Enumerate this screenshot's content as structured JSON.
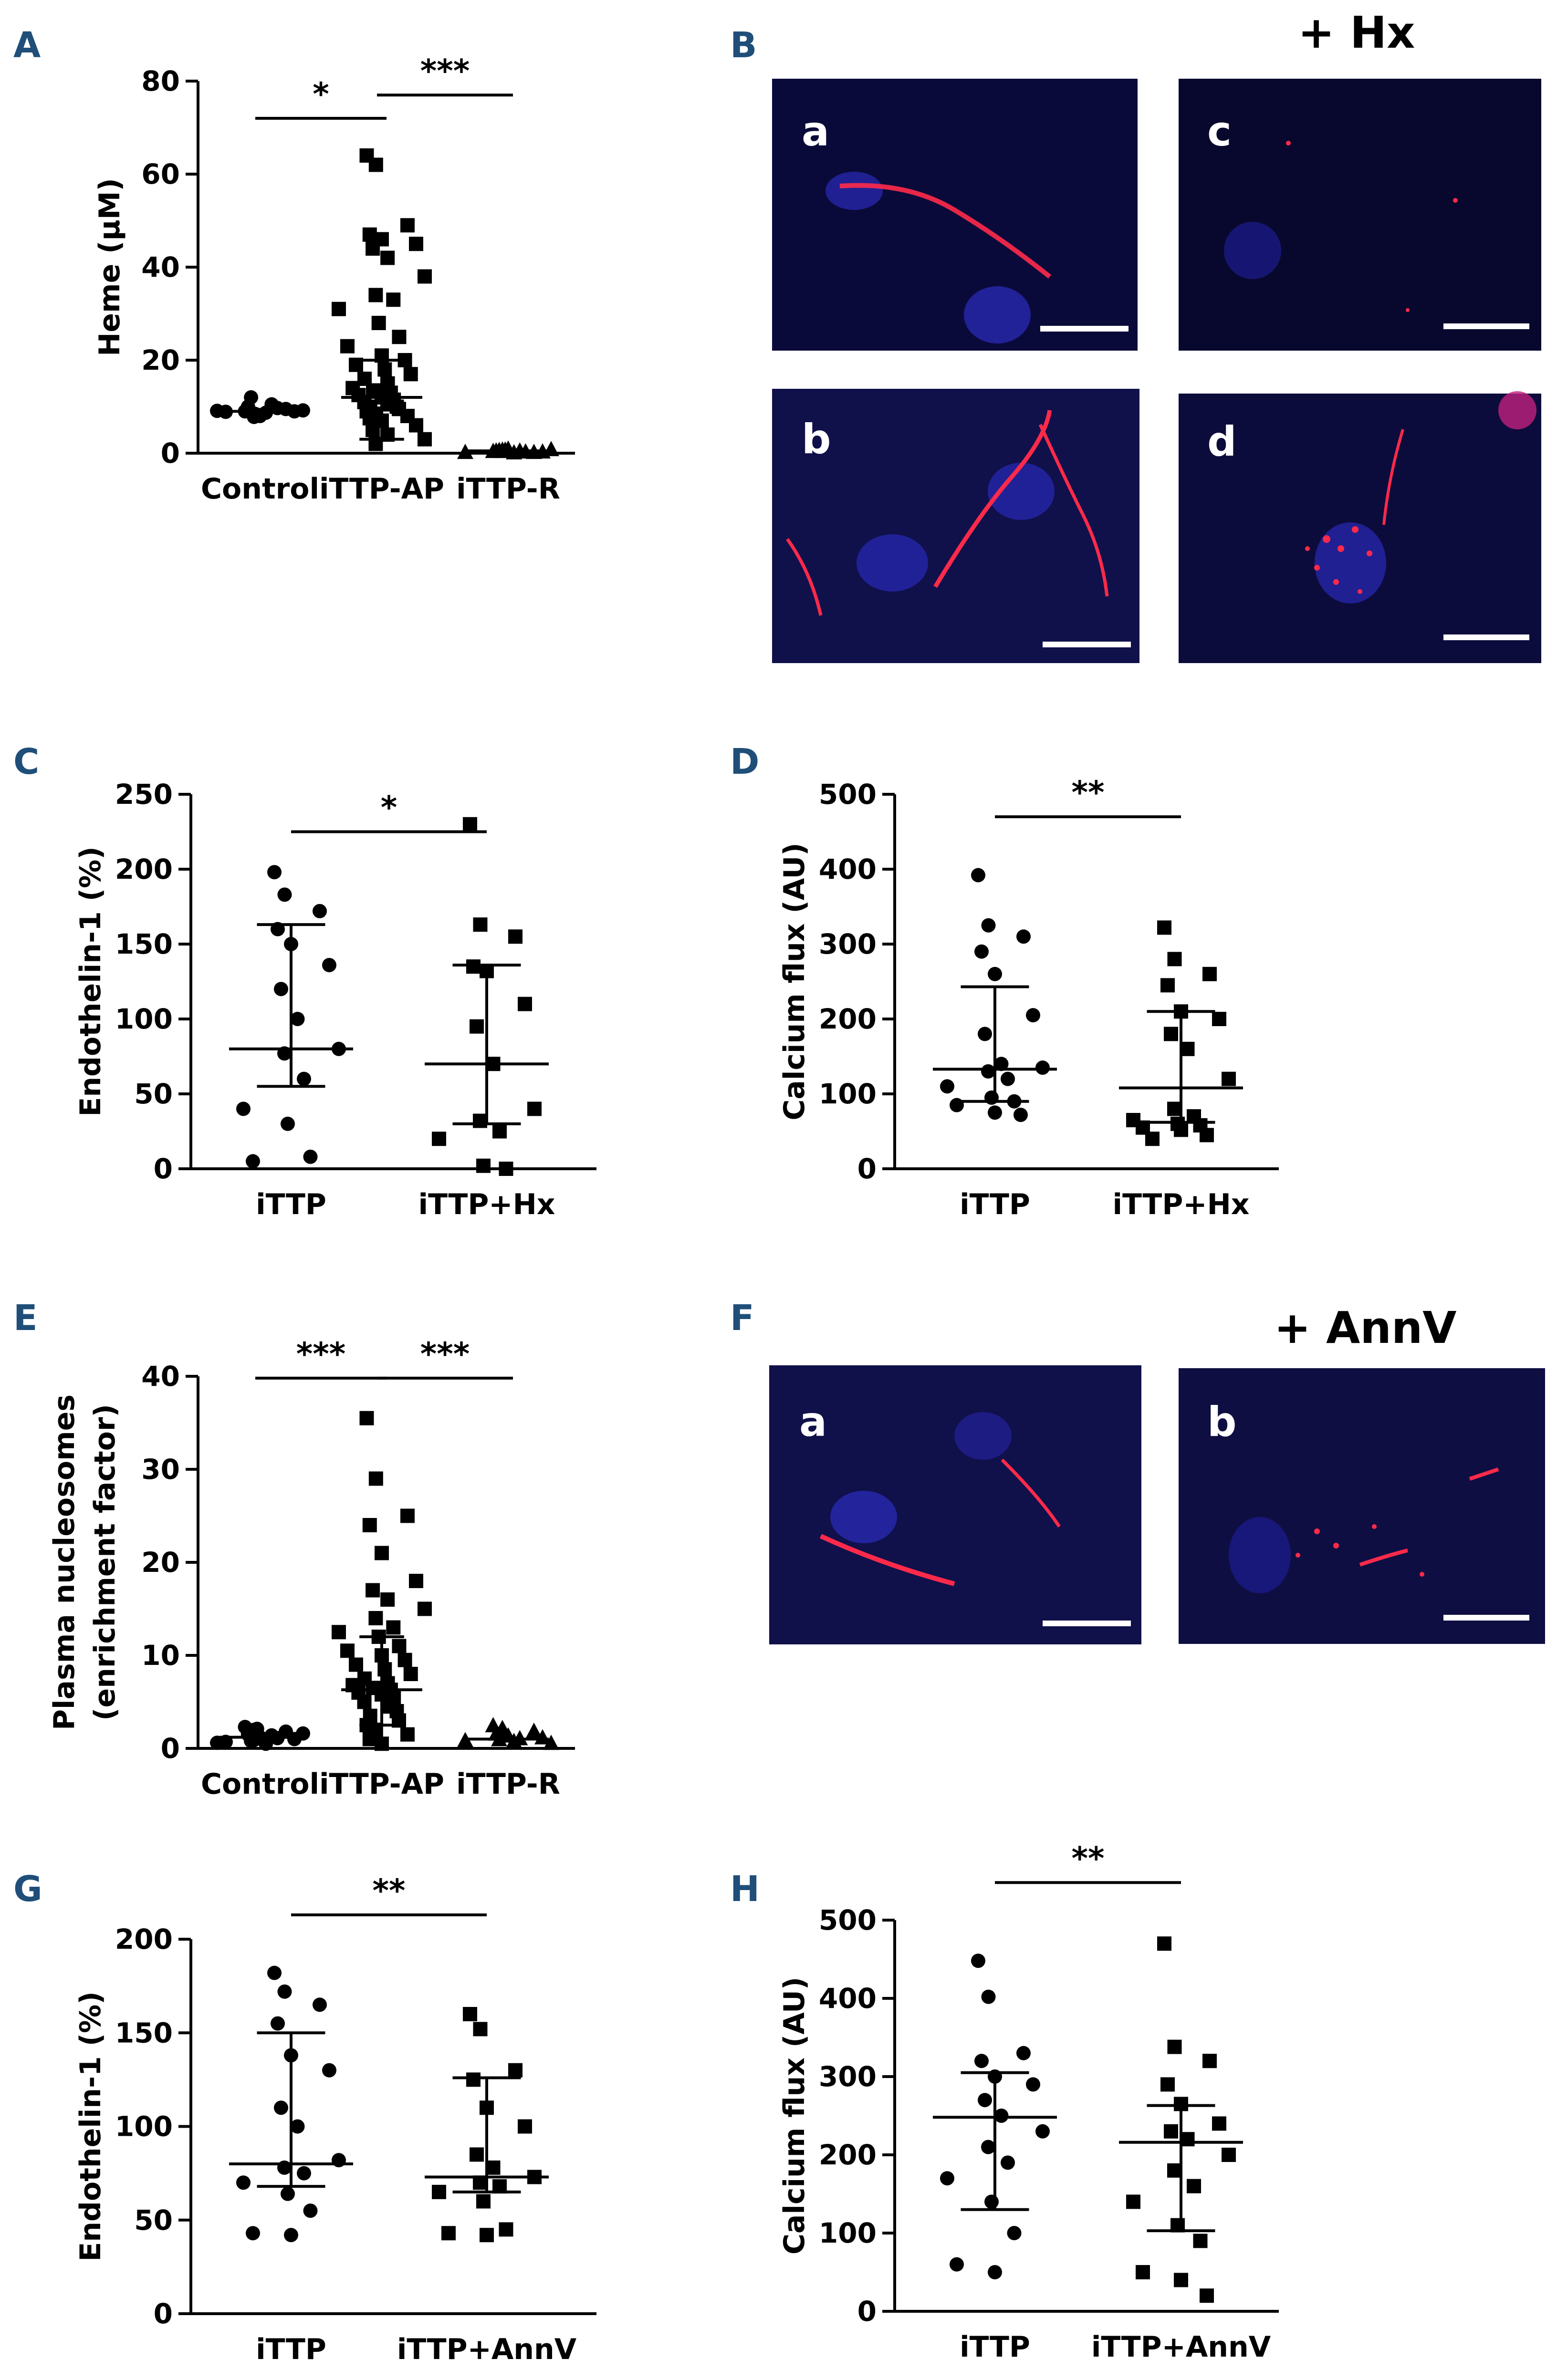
{
  "panels": {
    "A": {
      "letter": "A"
    },
    "B": {
      "letter": "B",
      "treatment": "+ Hx",
      "subs": [
        "a",
        "b",
        "c",
        "d"
      ]
    },
    "C": {
      "letter": "C"
    },
    "D": {
      "letter": "D"
    },
    "E": {
      "letter": "E"
    },
    "F": {
      "letter": "F",
      "treatment": "+ AnnV",
      "subs": [
        "a",
        "b"
      ]
    },
    "G": {
      "letter": "G"
    },
    "H": {
      "letter": "H"
    }
  },
  "chart_data": [
    {
      "id": "A",
      "type": "scatter",
      "ylabel": "Heme (µM)",
      "ylim": [
        0,
        80
      ],
      "yticks": [
        0,
        20,
        40,
        60,
        80
      ],
      "categories": [
        "Control",
        "iTTP-AP",
        "iTTP-R"
      ],
      "markers": [
        "circle",
        "square",
        "triangle"
      ],
      "series": [
        {
          "name": "Control",
          "values": [
            9,
            8.5,
            9.5,
            10,
            8,
            9,
            12,
            8.7,
            9.2,
            7.8,
            10.5,
            9.1,
            8.3,
            9.7,
            8.9
          ]
        },
        {
          "name": "iTTP-AP",
          "values": [
            64,
            62,
            49,
            47,
            46,
            45,
            44,
            42,
            38,
            34,
            33,
            31,
            28,
            25,
            23,
            21,
            20,
            19,
            18,
            17,
            16,
            15,
            14,
            13.5,
            13,
            12.5,
            12,
            11.5,
            11,
            10.5,
            10,
            10,
            9.5,
            9,
            8.5,
            8,
            7.5,
            7,
            6,
            5,
            4,
            3,
            2
          ]
        },
        {
          "name": "iTTP-R",
          "values": [
            0.5,
            0.8,
            0.3,
            0.6,
            1.0,
            0.4,
            0.7,
            0.2,
            0.9,
            0.5,
            0.6,
            0.3,
            0.8,
            0.4
          ]
        }
      ],
      "center": [
        9,
        12,
        0.5
      ],
      "error": [
        null,
        [
          3,
          20
        ],
        null
      ],
      "significance": [
        {
          "from": 0,
          "to": 1,
          "label": "*",
          "y": 72
        },
        {
          "from": 1,
          "to": 2,
          "label": "***",
          "y": 77
        }
      ]
    },
    {
      "id": "C",
      "type": "scatter",
      "ylabel": "Endothelin-1 (%)",
      "ylim": [
        0,
        250
      ],
      "yticks": [
        0,
        50,
        100,
        150,
        200,
        250
      ],
      "categories": [
        "iTTP",
        "iTTP+Hx"
      ],
      "markers": [
        "circle",
        "square"
      ],
      "series": [
        {
          "name": "iTTP",
          "values": [
            198,
            183,
            172,
            160,
            150,
            136,
            120,
            100,
            80,
            77,
            60,
            40,
            30,
            8,
            5
          ]
        },
        {
          "name": "iTTP+Hx",
          "values": [
            230,
            163,
            155,
            135,
            132,
            110,
            95,
            70,
            40,
            32,
            25,
            20,
            2,
            0
          ]
        }
      ],
      "center": [
        80,
        70
      ],
      "error": [
        [
          55,
          163
        ],
        [
          30,
          136
        ]
      ],
      "significance": [
        {
          "from": 0,
          "to": 1,
          "label": "*",
          "y": 225
        }
      ]
    },
    {
      "id": "D",
      "type": "scatter",
      "ylabel": "Calcium flux (AU)",
      "ylim": [
        0,
        500
      ],
      "yticks": [
        0,
        100,
        200,
        300,
        400,
        500
      ],
      "categories": [
        "iTTP",
        "iTTP+Hx"
      ],
      "markers": [
        "circle",
        "square"
      ],
      "series": [
        {
          "name": "iTTP",
          "values": [
            392,
            325,
            310,
            290,
            260,
            205,
            180,
            140,
            135,
            130,
            120,
            110,
            95,
            90,
            85,
            75,
            72
          ]
        },
        {
          "name": "iTTP+Hx",
          "values": [
            322,
            280,
            260,
            245,
            210,
            200,
            180,
            160,
            120,
            80,
            70,
            65,
            60,
            58,
            55,
            52,
            45,
            40
          ]
        }
      ],
      "center": [
        133,
        108
      ],
      "error": [
        [
          90,
          243
        ],
        [
          62,
          210
        ]
      ],
      "significance": [
        {
          "from": 0,
          "to": 1,
          "label": "**",
          "y": 470
        }
      ]
    },
    {
      "id": "E",
      "type": "scatter",
      "ylabel": "Plasma nucleosomes",
      "ylabel2": "(enrichment factor)",
      "ylim": [
        0,
        40
      ],
      "yticks": [
        0,
        10,
        20,
        30,
        40
      ],
      "categories": [
        "Control",
        "iTTP-AP",
        "iTTP-R"
      ],
      "markers": [
        "circle",
        "square",
        "triangle"
      ],
      "series": [
        {
          "name": "Control",
          "values": [
            2.3,
            2.0,
            1.8,
            1.5,
            1.2,
            1.0,
            0.8,
            0.5,
            1.6,
            0.9,
            1.4,
            0.6,
            2.1,
            1.1,
            0.7
          ]
        },
        {
          "name": "iTTP-AP",
          "values": [
            35.5,
            29,
            25,
            24,
            21,
            18,
            17,
            16,
            15,
            14,
            13,
            12.5,
            12,
            11,
            10.5,
            10,
            9.5,
            9,
            8.5,
            8,
            7.5,
            7,
            6.8,
            6.5,
            6.3,
            6,
            5.8,
            5.5,
            5,
            4.5,
            4,
            3.5,
            3,
            2.5,
            2,
            1.5,
            1,
            0.5
          ]
        },
        {
          "name": "iTTP-R",
          "values": [
            2.5,
            2.2,
            1.9,
            1.6,
            1.4,
            1.2,
            1.0,
            0.8,
            0.6,
            1.5,
            1.1,
            0.9
          ]
        }
      ],
      "center": [
        1.2,
        6.3,
        1.0
      ],
      "error": [
        null,
        [
          2.5,
          12
        ],
        null
      ],
      "significance": [
        {
          "from": 0,
          "to": 1,
          "label": "***",
          "y": 39.8
        },
        {
          "from": 1,
          "to": 2,
          "label": "***",
          "y": 39.8
        }
      ]
    },
    {
      "id": "G",
      "type": "scatter",
      "ylabel": "Endothelin-1 (%)",
      "ylim": [
        0,
        200
      ],
      "yticks": [
        0,
        50,
        100,
        150,
        200
      ],
      "categories": [
        "iTTP",
        "iTTP+AnnV"
      ],
      "markers": [
        "circle",
        "square"
      ],
      "series": [
        {
          "name": "iTTP",
          "values": [
            182,
            172,
            165,
            155,
            138,
            130,
            110,
            100,
            82,
            78,
            75,
            70,
            64,
            55,
            43,
            42
          ]
        },
        {
          "name": "iTTP+AnnV",
          "values": [
            160,
            152,
            130,
            125,
            110,
            100,
            85,
            78,
            73,
            70,
            68,
            65,
            60,
            45,
            43,
            42
          ]
        }
      ],
      "center": [
        80,
        73
      ],
      "error": [
        [
          68,
          150
        ],
        [
          65,
          126
        ]
      ],
      "significance": [
        {
          "from": 0,
          "to": 1,
          "label": "**",
          "y": 213
        }
      ]
    },
    {
      "id": "H",
      "type": "scatter",
      "ylabel": "Calcium flux (AU)",
      "ylim": [
        0,
        500
      ],
      "yticks": [
        0,
        100,
        200,
        300,
        400,
        500
      ],
      "categories": [
        "iTTP",
        "iTTP+AnnV"
      ],
      "markers": [
        "circle",
        "square"
      ],
      "series": [
        {
          "name": "iTTP",
          "values": [
            448,
            402,
            330,
            320,
            300,
            290,
            270,
            250,
            230,
            210,
            190,
            170,
            140,
            100,
            60,
            50
          ]
        },
        {
          "name": "iTTP+AnnV",
          "values": [
            470,
            338,
            320,
            290,
            265,
            240,
            230,
            220,
            200,
            180,
            160,
            140,
            110,
            90,
            50,
            40,
            20
          ]
        }
      ],
      "center": [
        248,
        216
      ],
      "error": [
        [
          130,
          305
        ],
        [
          103,
          263
        ]
      ],
      "significance": [
        {
          "from": 0,
          "to": 1,
          "label": "**",
          "y": 548
        }
      ]
    }
  ]
}
